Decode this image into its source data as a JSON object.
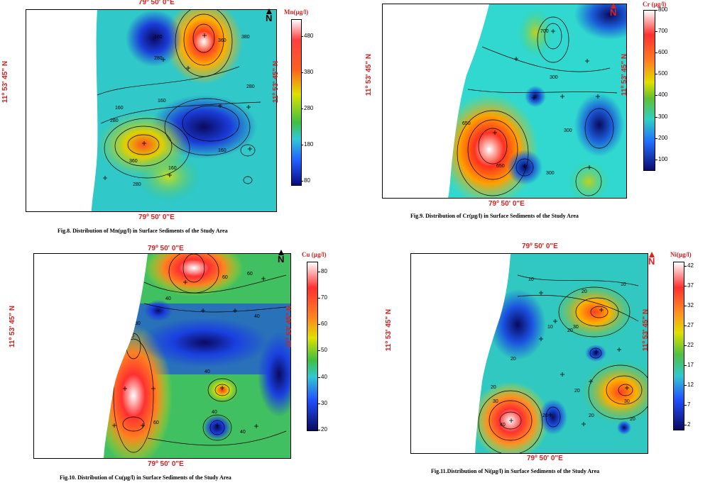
{
  "north_label": "N",
  "maps": [
    {
      "key": "mn",
      "caption": "Fig.8. Distribution of Mn(µg/l) in Surface Sediments of the Study Area",
      "legend_title": "Mn(µg/l)",
      "legend_ticks": [
        "480",
        "380",
        "280",
        "180",
        "80"
      ],
      "top_coord": "79º 50' 0\"E",
      "bottom_coord": "79º 50' 0\"E",
      "left_coord": "11º 53' 45\" N",
      "right_coord": "11º 53' 45\" N",
      "contour_labels": [
        "160",
        "360",
        "380",
        "280",
        "160",
        "160",
        "160",
        "280",
        "360",
        "160",
        "280",
        "280"
      ]
    },
    {
      "key": "cr",
      "caption": "Fig.9. Distribution of Cr(µg/l) in Surface Sediments of the Study Area",
      "legend_title": "Cr (µg/l)",
      "legend_ticks": [
        "800",
        "700",
        "600",
        "500",
        "400",
        "300",
        "200",
        "100"
      ],
      "top_coord": "",
      "bottom_coord": "79º 50' 0\"E",
      "left_coord": "11º 53' 45\" N",
      "right_coord": "11º 53' 45\" N",
      "contour_labels": [
        "700",
        "300",
        "300",
        "650",
        "650",
        "300",
        "300"
      ]
    },
    {
      "key": "cu",
      "caption": "Fig.10. Distribution of Cu(µg/l) in Surface Sediments of the Study Area",
      "legend_title": "Cu (µg/l)",
      "legend_ticks": [
        "80",
        "70",
        "60",
        "50",
        "40",
        "30",
        "20"
      ],
      "top_coord": "79º 50' 0\"E",
      "bottom_coord": "79º 50' 0\"E",
      "left_coord": "11º 53' 45\" N",
      "right_coord": "11º 53' 45\" N",
      "contour_labels": [
        "60",
        "40",
        "40",
        "30",
        "60",
        "40",
        "40",
        "60",
        "40",
        "60"
      ]
    },
    {
      "key": "ni",
      "caption": "Fig.11.Distribution of Ni(µg/l) in Surface Sediments of the Study Area",
      "legend_title": "Ni(µg/l)",
      "legend_ticks": [
        "42",
        "37",
        "32",
        "27",
        "22",
        "17",
        "12",
        "7",
        "2"
      ],
      "top_coord": "79º 50' 0\"E",
      "bottom_coord": "79º 50' 0\"E",
      "left_coord": "11º 53' 45\" N",
      "right_coord": "11º 53' 45\" N",
      "contour_labels": [
        "10",
        "20",
        "10",
        "20",
        "30",
        "10",
        "20",
        "20",
        "30",
        "20",
        "30",
        "40",
        "20",
        "20",
        "20"
      ]
    }
  ]
}
